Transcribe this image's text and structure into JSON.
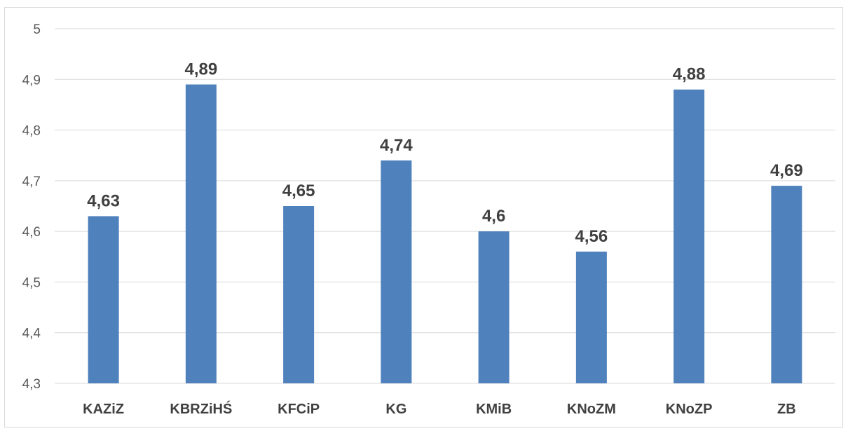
{
  "chart_data": {
    "type": "bar",
    "title": "",
    "xlabel": "",
    "ylabel": "",
    "categories": [
      "KAZiZ",
      "KBRZiHŚ",
      "KFCiP",
      "KG",
      "KMiB",
      "KNoZM",
      "KNoZP",
      "ZB"
    ],
    "values": [
      4.63,
      4.89,
      4.65,
      4.74,
      4.6,
      4.56,
      4.88,
      4.69
    ],
    "value_labels": [
      "4,63",
      "4,89",
      "4,65",
      "4,74",
      "4,6",
      "4,56",
      "4,88",
      "4,69"
    ],
    "ylim": [
      4.3,
      5
    ],
    "yticks": [
      4.3,
      4.4,
      4.5,
      4.6,
      4.7,
      4.8,
      4.9,
      5
    ],
    "ytick_labels": [
      "4,3",
      "4,4",
      "4,5",
      "4,6",
      "4,7",
      "4,8",
      "4,9",
      "5"
    ],
    "grid": true,
    "legend": "none",
    "colors": {
      "bar": "#4f81bd",
      "grid": "#d9d9d9",
      "axis": "#d9d9d9"
    }
  }
}
